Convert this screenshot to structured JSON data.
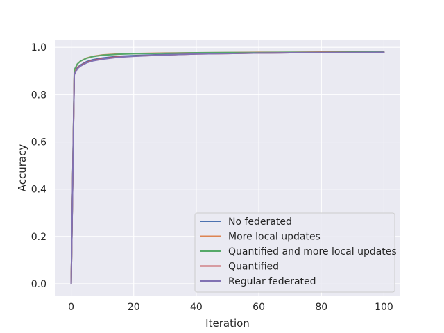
{
  "chart_data": {
    "type": "line",
    "xlabel": "Iteration",
    "ylabel": "Accuracy",
    "xlim": [
      -5,
      105
    ],
    "ylim": [
      -0.05,
      1.03
    ],
    "xticks": [
      0,
      20,
      40,
      60,
      80,
      100
    ],
    "yticks": [
      0.0,
      0.2,
      0.4,
      0.6,
      0.8,
      1.0
    ],
    "x_tick_labels": [
      "0",
      "20",
      "40",
      "60",
      "80",
      "100"
    ],
    "y_tick_labels": [
      "0.0",
      "0.2",
      "0.4",
      "0.6",
      "0.8",
      "1.0"
    ],
    "grid": true,
    "legend_position": "lower-right",
    "x": [
      0,
      1,
      2,
      3,
      5,
      7,
      10,
      15,
      20,
      30,
      40,
      50,
      60,
      70,
      80,
      90,
      100
    ],
    "series": [
      {
        "name": "No federated",
        "color": "#4c72b0",
        "values": [
          0.0,
          0.89,
          0.915,
          0.925,
          0.94,
          0.948,
          0.955,
          0.962,
          0.965,
          0.97,
          0.973,
          0.975,
          0.976,
          0.977,
          0.978,
          0.978,
          0.979
        ]
      },
      {
        "name": "More local updates",
        "color": "#dd8452",
        "values": [
          0.0,
          0.9,
          0.93,
          0.942,
          0.955,
          0.962,
          0.968,
          0.972,
          0.974,
          0.976,
          0.977,
          0.978,
          0.979,
          0.979,
          0.98,
          0.98,
          0.98
        ]
      },
      {
        "name": "Quantified and more local updates",
        "color": "#55a868",
        "values": [
          0.0,
          0.905,
          0.93,
          0.942,
          0.954,
          0.961,
          0.967,
          0.971,
          0.973,
          0.975,
          0.977,
          0.978,
          0.978,
          0.979,
          0.979,
          0.98,
          0.98
        ]
      },
      {
        "name": "Quantified",
        "color": "#c44e52",
        "values": [
          0.0,
          0.885,
          0.912,
          0.923,
          0.937,
          0.945,
          0.952,
          0.96,
          0.963,
          0.968,
          0.972,
          0.974,
          0.976,
          0.977,
          0.978,
          0.978,
          0.979
        ]
      },
      {
        "name": "Regular federated",
        "color": "#8172b3",
        "values": [
          0.0,
          0.885,
          0.91,
          0.921,
          0.935,
          0.943,
          0.95,
          0.958,
          0.962,
          0.968,
          0.972,
          0.974,
          0.976,
          0.977,
          0.978,
          0.978,
          0.979
        ]
      }
    ]
  }
}
